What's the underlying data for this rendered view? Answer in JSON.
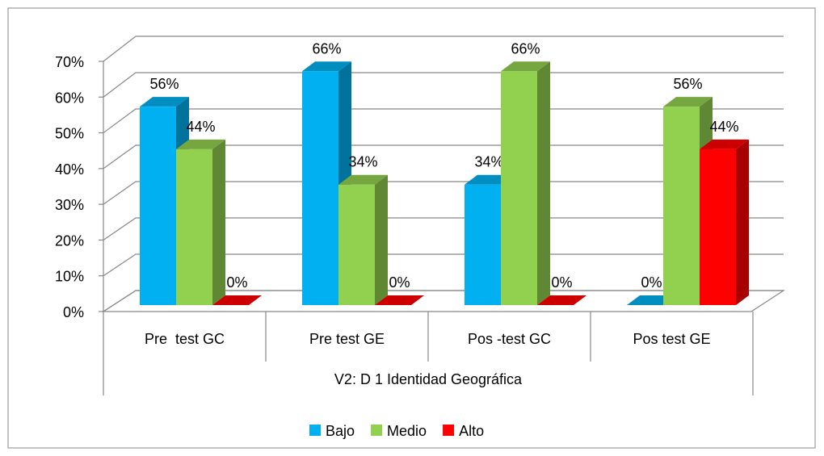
{
  "chart_data": {
    "type": "bar3d",
    "x_label": "V2: D 1 Identidad Geográfica",
    "categories": [
      "Pre  test GC",
      "Pre test GE",
      "Pos -test GC",
      "Pos test GE"
    ],
    "series": [
      {
        "name": "Bajo",
        "color": "#00b0f0",
        "values": [
          56,
          66,
          34,
          0
        ],
        "value_labels": [
          "56%",
          "66%",
          "34%",
          "0%"
        ]
      },
      {
        "name": "Medio",
        "color": "#92d050",
        "values": [
          44,
          34,
          66,
          56
        ],
        "value_labels": [
          "44%",
          "34%",
          "66%",
          "56%"
        ]
      },
      {
        "name": "Alto",
        "color": "#ff0000",
        "values": [
          0,
          0,
          0,
          44
        ],
        "value_labels": [
          "0%",
          "0%",
          "0%",
          "44%"
        ]
      }
    ],
    "ylim": [
      0,
      70
    ],
    "yticks": [
      {
        "value": 0,
        "label": "0%"
      },
      {
        "value": 10,
        "label": "10%"
      },
      {
        "value": 20,
        "label": "20%"
      },
      {
        "value": 30,
        "label": "30%"
      },
      {
        "value": 40,
        "label": "40%"
      },
      {
        "value": 50,
        "label": "50%"
      },
      {
        "value": 60,
        "label": "60%"
      },
      {
        "value": 70,
        "label": "70%"
      }
    ],
    "grid": true,
    "legend": "bottom"
  }
}
